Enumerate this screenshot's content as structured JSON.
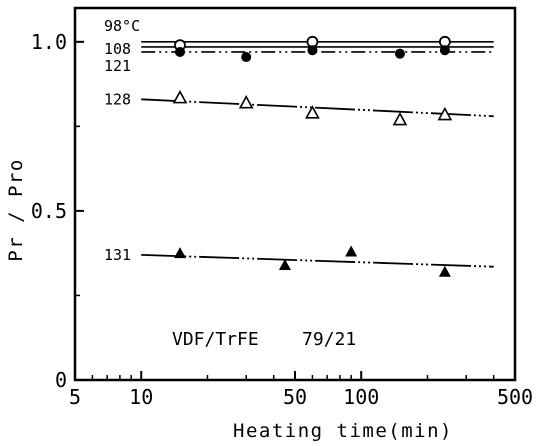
{
  "chart_data": {
    "type": "scatter",
    "xlabel": "Heating time(min)",
    "ylabel": "Pr / Pro",
    "xscale": "log",
    "xlim": [
      5,
      500
    ],
    "ylim": [
      0,
      1.1
    ],
    "x_ticks": [
      5,
      10,
      50,
      100,
      500
    ],
    "x_tick_labels": [
      "5",
      "10",
      "50",
      "100",
      "500"
    ],
    "y_ticks": [
      0,
      0.5,
      1.0
    ],
    "y_tick_labels": [
      "0",
      "0.5",
      "1.0"
    ],
    "annotation": "VDF/TrFE    79/21",
    "grid": false,
    "series": [
      {
        "name": "98°C",
        "marker": "open-circle",
        "x": [
          15,
          60,
          240
        ],
        "y": [
          0.99,
          1.0,
          1.0
        ],
        "line_y": 1.0
      },
      {
        "name": "108",
        "marker": "none",
        "x": [],
        "y": [],
        "line_y": 0.985
      },
      {
        "name": "121",
        "marker": "filled-circle",
        "x": [
          15,
          30,
          60,
          150,
          240
        ],
        "y": [
          0.97,
          0.955,
          0.975,
          0.965,
          0.975
        ],
        "line_y": 0.97
      },
      {
        "name": "128",
        "marker": "open-triangle",
        "x": [
          15,
          30,
          60,
          150,
          240
        ],
        "y": [
          0.835,
          0.82,
          0.79,
          0.77,
          0.785
        ],
        "fit": [
          [
            10,
            0.83
          ],
          [
            400,
            0.78
          ]
        ]
      },
      {
        "name": "131",
        "marker": "filled-triangle",
        "x": [
          15,
          45,
          90,
          240
        ],
        "y": [
          0.375,
          0.34,
          0.38,
          0.32
        ],
        "fit": [
          [
            10,
            0.37
          ],
          [
            400,
            0.335
          ]
        ]
      }
    ]
  }
}
